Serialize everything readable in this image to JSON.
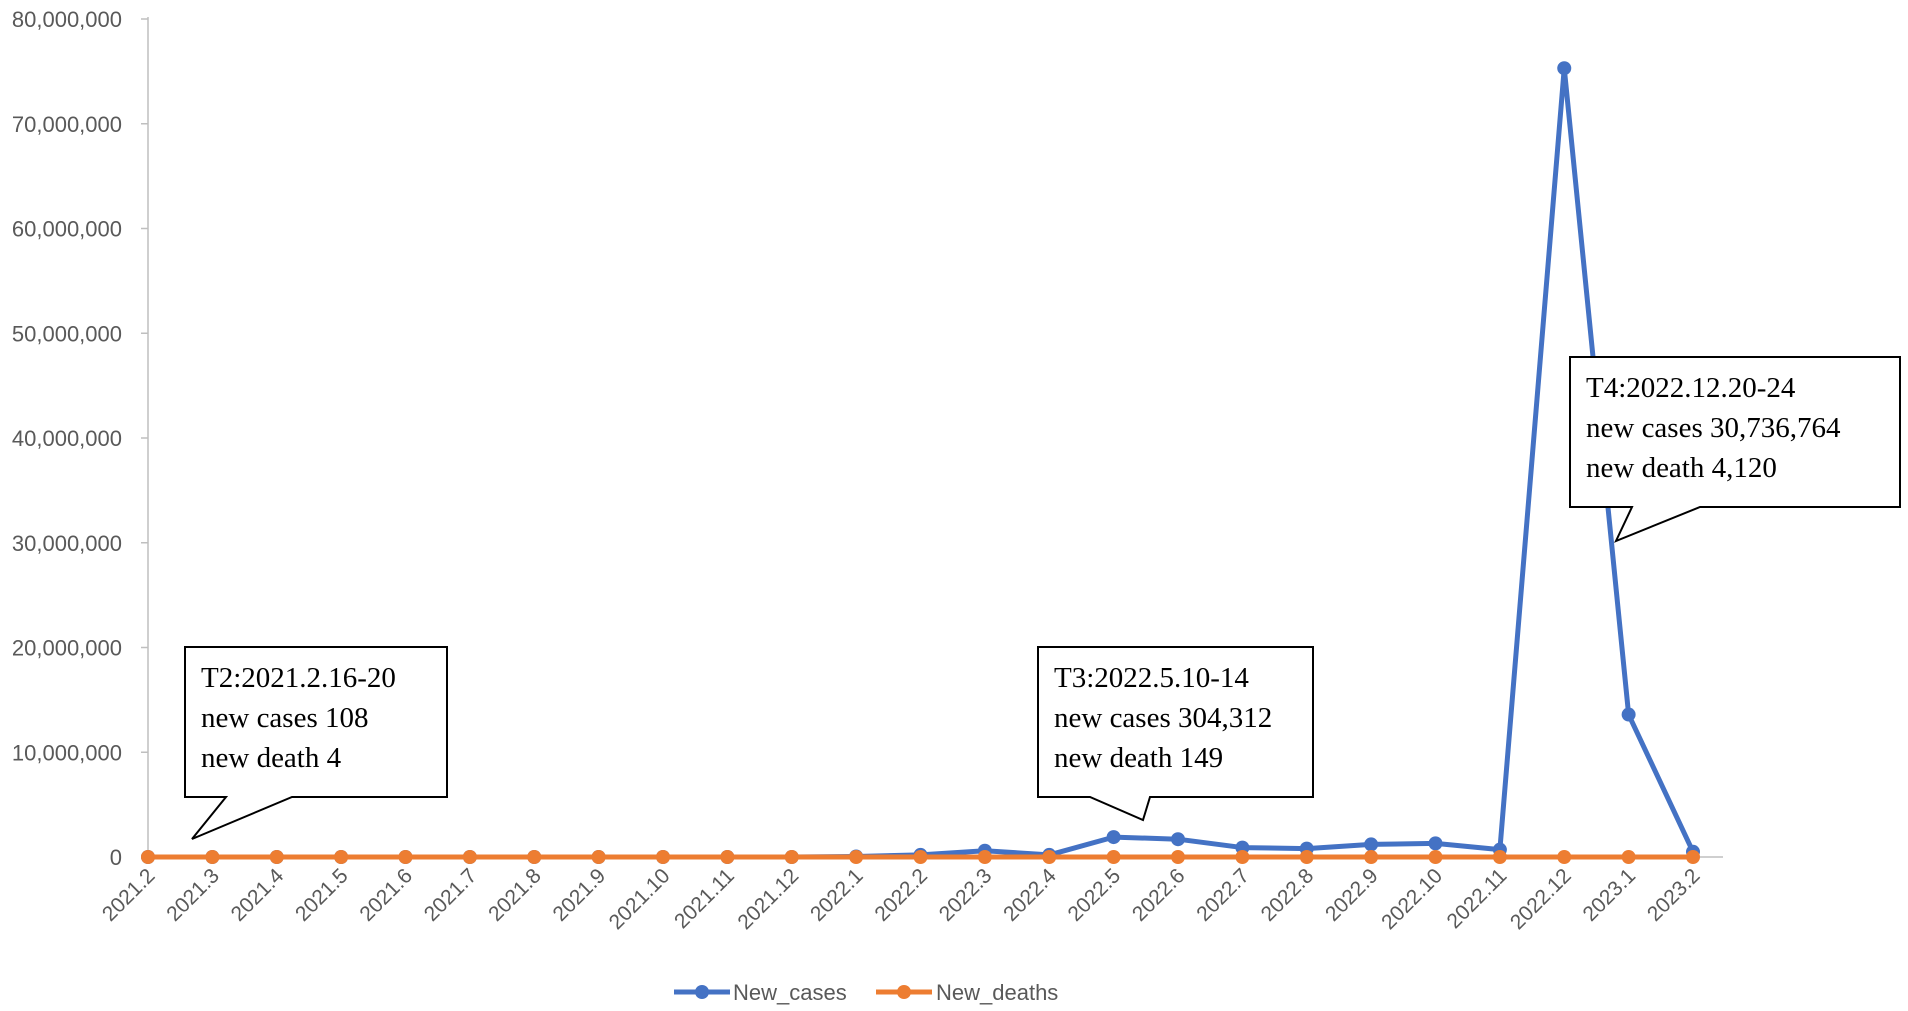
{
  "chart_data": {
    "type": "line",
    "title": "",
    "xlabel": "",
    "ylabel": "",
    "ylim": [
      0,
      80000000
    ],
    "yticks": [
      0,
      10000000,
      20000000,
      30000000,
      40000000,
      50000000,
      60000000,
      70000000,
      80000000
    ],
    "ytick_labels": [
      "0",
      "10,000,000",
      "20,000,000",
      "30,000,000",
      "40,000,000",
      "50,000,000",
      "60,000,000",
      "70,000,000",
      "80,000,000"
    ],
    "grid": false,
    "legend_position": "bottom",
    "categories": [
      "2021.2",
      "2021.3",
      "2021.4",
      "2021.5",
      "2021.6",
      "2021.7",
      "2021.8",
      "2021.9",
      "2021.10",
      "2021.11",
      "2021.12",
      "2022.1",
      "2022.2",
      "2022.3",
      "2022.4",
      "2022.5",
      "2022.6",
      "2022.7",
      "2022.8",
      "2022.9",
      "2022.10",
      "2022.11",
      "2022.12",
      "2023.1",
      "2023.2"
    ],
    "series": [
      {
        "name": "New_cases",
        "color": "#4472C4",
        "values": [
          0,
          0,
          0,
          0,
          0,
          0,
          0,
          0,
          0,
          0,
          0,
          50000,
          200000,
          600000,
          200000,
          1900000,
          1700000,
          900000,
          800000,
          1200000,
          1300000,
          700000,
          75300000,
          13600000,
          500000
        ]
      },
      {
        "name": "New_deaths",
        "color": "#ED7D31",
        "values": [
          0,
          0,
          0,
          0,
          0,
          0,
          0,
          0,
          0,
          0,
          0,
          0,
          0,
          0,
          0,
          0,
          0,
          0,
          0,
          0,
          0,
          0,
          0,
          0,
          0
        ]
      }
    ],
    "annotations": [
      {
        "lines": [
          "T2:2021.2.16-20",
          "new cases 108",
          "new death 4"
        ],
        "points_to": "2021.3"
      },
      {
        "lines": [
          "T3:2022.5.10-14",
          "new cases 304,312",
          "new death 149"
        ],
        "points_to": "2022.6"
      },
      {
        "lines": [
          "T4:2022.12.20-24",
          "new cases 30,736,764",
          "new death 4,120"
        ],
        "points_to": "2023.1"
      }
    ]
  }
}
